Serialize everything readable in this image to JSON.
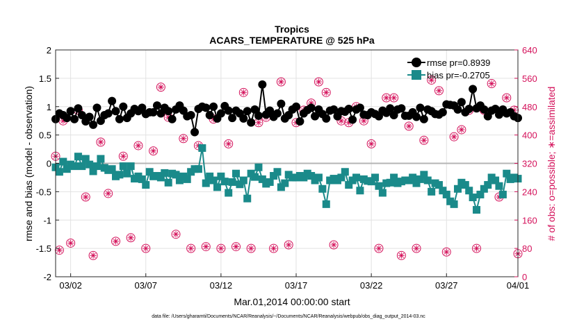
{
  "chart_data": {
    "type": "line",
    "title_line1": "Tropics",
    "title_line2": "ACARS_TEMPERATURE @ 525 hPa",
    "xlabel": "Mar.01,2014 00:00:00 start",
    "ylabel_left": "rmse and bias (model - observation)",
    "ylabel_right": "# of obs: o=possible; ∗=assimilated",
    "footnote": "data file: /Users/gharamti/Documents/NCAR/Reanalysis/~/Documents/NCAR/Reanalysis/webpub/obs_diag_output_2014-03.nc",
    "xlim": [
      0.5,
      31.25
    ],
    "ylim_left": [
      -2,
      2
    ],
    "ylim_right": [
      0,
      640
    ],
    "xticks": [
      1.5,
      6.5,
      11.5,
      16.5,
      21.5,
      26.5,
      31.5
    ],
    "xtick_labels": [
      "03/02",
      "03/07",
      "03/12",
      "03/17",
      "03/22",
      "03/27",
      "04/01"
    ],
    "yticks_left": [
      -2,
      -1.5,
      -1,
      -0.5,
      0,
      0.5,
      1,
      1.5,
      2
    ],
    "ytick_labels_left": [
      "-2",
      "-1.5",
      "-1",
      "-0.5",
      "0",
      "0.5",
      "1",
      "1.5",
      "2"
    ],
    "yticks_right": [
      0,
      80,
      160,
      240,
      320,
      400,
      480,
      560,
      640
    ],
    "ytick_labels_right": [
      "0",
      "80",
      "160",
      "240",
      "320",
      "400",
      "480",
      "560",
      "640"
    ],
    "legend": [
      {
        "name": "rmse",
        "label": "rmse pr=0.8939",
        "color": "#000000"
      },
      {
        "name": "bias",
        "label": "bias pr=-0.2705",
        "color": "#1a8a8a"
      }
    ],
    "series": [
      {
        "name": "rmse",
        "color": "#000000",
        "x": [
          0.5,
          0.75,
          1.0,
          1.25,
          1.5,
          1.75,
          2.0,
          2.25,
          2.5,
          2.75,
          3.0,
          3.25,
          3.5,
          3.75,
          4.0,
          4.25,
          4.5,
          4.75,
          5.0,
          5.25,
          5.5,
          5.75,
          6.0,
          6.25,
          6.5,
          6.75,
          7.0,
          7.25,
          7.5,
          7.75,
          8.0,
          8.25,
          8.5,
          8.75,
          9.0,
          9.25,
          9.5,
          9.75,
          10.0,
          10.25,
          10.5,
          10.75,
          11.0,
          11.25,
          11.5,
          11.75,
          12.0,
          12.25,
          12.5,
          12.75,
          13.0,
          13.25,
          13.5,
          13.75,
          14.0,
          14.25,
          14.5,
          14.75,
          15.0,
          15.25,
          15.5,
          15.75,
          16.0,
          16.25,
          16.5,
          16.75,
          17.0,
          17.25,
          17.5,
          17.75,
          18.0,
          18.25,
          18.5,
          18.75,
          19.0,
          19.25,
          19.5,
          19.75,
          20.0,
          20.25,
          20.5,
          20.75,
          21.0,
          21.25,
          21.5,
          21.75,
          22.0,
          22.25,
          22.5,
          22.75,
          23.0,
          23.25,
          23.5,
          23.75,
          24.0,
          24.25,
          24.5,
          24.75,
          25.0,
          25.25,
          25.5,
          25.75,
          26.0,
          26.25,
          26.5,
          26.75,
          27.0,
          27.25,
          27.5,
          27.75,
          28.0,
          28.25,
          28.5,
          28.75,
          29.0,
          29.25,
          29.5,
          29.75,
          30.0,
          30.25,
          30.5,
          30.75,
          31.0,
          31.25
        ],
        "values": [
          0.78,
          0.88,
          0.85,
          0.8,
          0.92,
          0.78,
          0.97,
          0.85,
          0.74,
          0.82,
          0.68,
          0.98,
          0.75,
          0.85,
          0.88,
          1.1,
          0.92,
          0.78,
          1.0,
          0.8,
          0.88,
          0.96,
          0.92,
          0.98,
          0.87,
          0.9,
          0.9,
          1.02,
          0.88,
          0.98,
          0.92,
          0.78,
          0.95,
          1.02,
          0.93,
          0.83,
          0.85,
          0.55,
          0.96,
          1.0,
          0.98,
          0.85,
          1.0,
          0.79,
          0.88,
          1.01,
          0.93,
          0.8,
          0.93,
          0.88,
          0.79,
          0.92,
          0.72,
          0.95,
          0.84,
          1.39,
          0.86,
          0.93,
          0.82,
          0.88,
          1.05,
          0.79,
          0.85,
          0.95,
          1.0,
          0.74,
          0.88,
          0.94,
          0.98,
          0.83,
          0.95,
          0.87,
          0.79,
          0.93,
          0.95,
          0.83,
          0.92,
          0.91,
          0.96,
          0.77,
          0.95,
          0.98,
          0.86,
          0.85,
          0.9,
          0.87,
          0.83,
          0.93,
          0.89,
          0.97,
          0.85,
          0.95,
          0.97,
          0.84,
          0.84,
          0.9,
          0.82,
          0.98,
          0.78,
          0.95,
          0.92,
          0.87,
          0.86,
          0.9,
          1.04,
          1.03,
          1.02,
          0.95,
          1.08,
          0.9,
          0.96,
          1.31,
          0.97,
          1.02,
          0.95,
          0.83,
          0.93,
          0.96,
          0.86,
          0.95,
          0.88,
          0.9,
          0.83,
          0.8
        ]
      },
      {
        "name": "bias",
        "color": "#1a8a8a",
        "x": [
          0.5,
          0.75,
          1.0,
          1.25,
          1.5,
          1.75,
          2.0,
          2.25,
          2.5,
          2.75,
          3.0,
          3.25,
          3.5,
          3.75,
          4.0,
          4.25,
          4.5,
          4.75,
          5.0,
          5.25,
          5.5,
          5.75,
          6.0,
          6.25,
          6.5,
          6.75,
          7.0,
          7.25,
          7.5,
          7.75,
          8.0,
          8.25,
          8.5,
          8.75,
          9.0,
          9.25,
          9.5,
          9.75,
          10.0,
          10.25,
          10.5,
          10.75,
          11.0,
          11.25,
          11.5,
          11.75,
          12.0,
          12.25,
          12.5,
          12.75,
          13.0,
          13.25,
          13.5,
          13.75,
          14.0,
          14.25,
          14.5,
          14.75,
          15.0,
          15.25,
          15.5,
          15.75,
          16.0,
          16.25,
          16.5,
          16.75,
          17.0,
          17.25,
          17.5,
          17.75,
          18.0,
          18.25,
          18.5,
          18.75,
          19.0,
          19.25,
          19.5,
          19.75,
          20.0,
          20.25,
          20.5,
          20.75,
          21.0,
          21.25,
          21.5,
          21.75,
          22.0,
          22.25,
          22.5,
          22.75,
          23.0,
          23.25,
          23.5,
          23.75,
          24.0,
          24.25,
          24.5,
          24.75,
          25.0,
          25.25,
          25.5,
          25.75,
          26.0,
          26.25,
          26.5,
          26.75,
          27.0,
          27.25,
          27.5,
          27.75,
          28.0,
          28.25,
          28.5,
          28.75,
          29.0,
          29.25,
          29.5,
          29.75,
          30.0,
          30.25,
          30.5,
          30.75,
          31.0,
          31.25
        ],
        "values": [
          -0.07,
          -0.15,
          0.03,
          -0.1,
          -0.02,
          -0.05,
          0.12,
          -0.05,
          0.08,
          -0.02,
          -0.14,
          -0.05,
          0.08,
          -0.08,
          -0.12,
          -0.1,
          -0.23,
          -0.2,
          -0.05,
          -0.18,
          -0.05,
          -0.27,
          -0.23,
          -0.28,
          -0.38,
          -0.15,
          -0.23,
          -0.22,
          -0.25,
          -0.17,
          -0.34,
          -0.18,
          -0.2,
          -0.3,
          -0.23,
          -0.28,
          -0.15,
          -0.1,
          -0.1,
          0.27,
          -0.35,
          -0.23,
          -0.3,
          -0.42,
          -0.23,
          -0.32,
          -0.52,
          -0.33,
          -0.18,
          -0.37,
          -0.3,
          -0.62,
          -0.18,
          -0.24,
          -0.07,
          -0.28,
          -0.36,
          -0.33,
          -0.22,
          -0.15,
          -0.42,
          -0.35,
          -0.2,
          -0.25,
          -0.25,
          -0.22,
          -0.25,
          -0.18,
          -0.22,
          -0.3,
          -0.25,
          -0.45,
          -0.72,
          -0.3,
          -0.27,
          -0.3,
          -0.25,
          -0.15,
          -0.38,
          -0.3,
          -0.25,
          -0.48,
          -0.28,
          -0.31,
          -0.32,
          -0.25,
          -0.4,
          -0.52,
          -0.35,
          -0.34,
          -0.25,
          -0.35,
          -0.32,
          -0.3,
          -0.3,
          -0.25,
          -0.35,
          -0.28,
          -0.2,
          -0.3,
          -0.5,
          -0.35,
          -0.38,
          -0.48,
          -0.55,
          -0.67,
          -0.72,
          -0.45,
          -0.34,
          -0.38,
          -0.48,
          -0.6,
          -0.82,
          -0.55,
          -0.45,
          -0.38,
          -0.25,
          -0.3,
          -0.4,
          -0.55,
          -0.18,
          -0.28,
          -0.25,
          -0.27
        ]
      },
      {
        "name": "obs_possible",
        "color": "#d4105a",
        "marker": "o",
        "x": [
          0.5,
          0.75,
          1.0,
          1.5,
          2.0,
          2.5,
          3.0,
          3.5,
          4.0,
          4.5,
          5.0,
          5.5,
          6.0,
          6.5,
          7.0,
          7.5,
          8.0,
          8.5,
          9.0,
          9.5,
          10.0,
          10.5,
          11.0,
          11.5,
          12.0,
          12.5,
          13.0,
          13.5,
          14.0,
          14.5,
          15.0,
          15.5,
          16.0,
          16.5,
          17.0,
          17.5,
          18.0,
          18.5,
          19.0,
          19.5,
          20.0,
          20.5,
          21.0,
          21.5,
          22.0,
          22.5,
          23.0,
          23.5,
          24.0,
          24.5,
          25.0,
          25.5,
          26.0,
          26.5,
          27.0,
          27.5,
          28.0,
          28.5,
          29.0,
          29.5,
          30.0,
          30.5,
          31.0,
          31.25
        ],
        "values": [
          340,
          75,
          440,
          95,
          470,
          225,
          60,
          380,
          235,
          100,
          340,
          110,
          370,
          80,
          355,
          535,
          450,
          120,
          390,
          80,
          370,
          85,
          445,
          80,
          375,
          85,
          520,
          80,
          435,
          450,
          80,
          550,
          90,
          435,
          470,
          490,
          550,
          520,
          90,
          440,
          435,
          480,
          440,
          375,
          80,
          505,
          505,
          60,
          425,
          80,
          385,
          555,
          525,
          70,
          395,
          415,
          470,
          80,
          470,
          545,
          225,
          505,
          470,
          65
        ]
      },
      {
        "name": "obs_assimilated",
        "color": "#d4105a",
        "marker": "*",
        "x": [
          0.5,
          0.75,
          1.0,
          1.5,
          2.0,
          2.5,
          3.0,
          3.5,
          4.0,
          4.5,
          5.0,
          5.5,
          6.0,
          6.5,
          7.0,
          7.5,
          8.0,
          8.5,
          9.0,
          9.5,
          10.0,
          10.5,
          11.0,
          11.5,
          12.0,
          12.5,
          13.0,
          13.5,
          14.0,
          14.5,
          15.0,
          15.5,
          16.0,
          16.5,
          17.0,
          17.5,
          18.0,
          18.5,
          19.0,
          19.5,
          20.0,
          20.5,
          21.0,
          21.5,
          22.0,
          22.5,
          23.0,
          23.5,
          24.0,
          24.5,
          25.0,
          25.5,
          26.0,
          26.5,
          27.0,
          27.5,
          28.0,
          28.5,
          29.0,
          29.5,
          30.0,
          30.5,
          31.0,
          31.25
        ],
        "values": [
          340,
          75,
          440,
          95,
          470,
          225,
          60,
          380,
          235,
          100,
          340,
          110,
          370,
          80,
          355,
          535,
          450,
          120,
          390,
          80,
          370,
          85,
          445,
          80,
          375,
          85,
          520,
          80,
          435,
          450,
          80,
          550,
          90,
          435,
          470,
          490,
          550,
          520,
          90,
          440,
          435,
          480,
          440,
          375,
          80,
          505,
          505,
          60,
          425,
          80,
          385,
          555,
          525,
          70,
          395,
          415,
          470,
          80,
          470,
          545,
          225,
          505,
          470,
          65
        ]
      }
    ]
  }
}
